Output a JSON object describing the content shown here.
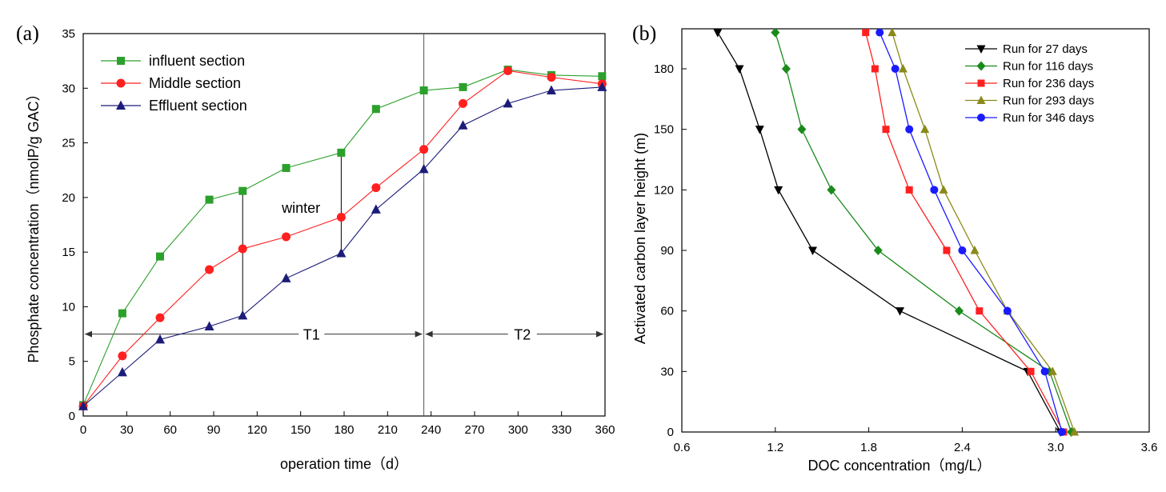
{
  "chart_data": [
    {
      "panel": "(a)",
      "type": "line",
      "xlabel": "operation time（d）",
      "ylabel": "Phosphate concentration（nmolP/g GAC）",
      "xlim": [
        0,
        360
      ],
      "ylim": [
        0,
        35
      ],
      "xticks": [
        0,
        30,
        60,
        90,
        120,
        150,
        180,
        210,
        240,
        270,
        300,
        330,
        360
      ],
      "yticks": [
        0,
        5,
        10,
        15,
        20,
        25,
        30,
        35
      ],
      "legend_position": "top-left",
      "series": [
        {
          "name": "influent section",
          "color": "#2ca02c",
          "marker": "square",
          "x": [
            0,
            27,
            53,
            87,
            110,
            140,
            178,
            202,
            235,
            262,
            293,
            323,
            358
          ],
          "y": [
            1.0,
            9.4,
            14.6,
            19.8,
            20.6,
            22.7,
            24.1,
            28.1,
            29.8,
            30.1,
            31.7,
            31.2,
            31.1
          ]
        },
        {
          "name": "Middle section",
          "color": "#ff2020",
          "marker": "circle",
          "x": [
            0,
            27,
            53,
            87,
            110,
            140,
            178,
            202,
            235,
            262,
            293,
            323,
            358
          ],
          "y": [
            0.9,
            5.5,
            9.0,
            13.4,
            15.3,
            16.4,
            18.2,
            20.9,
            24.4,
            28.6,
            31.6,
            31.0,
            30.4
          ]
        },
        {
          "name": "Effluent section",
          "color": "#1c1c78",
          "marker": "triangle-up",
          "x": [
            0,
            27,
            53,
            87,
            110,
            140,
            178,
            202,
            235,
            262,
            293,
            323,
            358
          ],
          "y": [
            0.9,
            4.0,
            7.0,
            8.2,
            9.2,
            12.6,
            14.9,
            18.9,
            22.6,
            26.6,
            28.6,
            29.8,
            30.1
          ]
        }
      ],
      "annotations": {
        "winter": "winter",
        "period1": "T1",
        "period2": "T2",
        "divider_x": 235,
        "period_arrow_y": 7.5,
        "winter_lines": [
          {
            "x": 110,
            "y_from": 9.2,
            "y_to": 20.6
          },
          {
            "x": 178,
            "y_from": 14.9,
            "y_to": 24.1
          }
        ]
      }
    },
    {
      "panel": "(b)",
      "type": "line",
      "xlabel": "DOC concentration（mg/L）",
      "ylabel": "Activated carbon layer height (m)",
      "xlim": [
        0.6,
        3.6
      ],
      "ylim": [
        0,
        198
      ],
      "xticks": [
        0.6,
        1.2,
        1.8,
        2.4,
        3.0,
        3.6
      ],
      "xtick_labels": [
        "0.6",
        "1.2",
        "1.8",
        "2.4",
        "3.0",
        "3.6"
      ],
      "yticks": [
        0,
        30,
        60,
        90,
        120,
        150,
        180
      ],
      "legend_position": "top-right",
      "series": [
        {
          "name": "Run for 27 days",
          "color": "#000000",
          "marker": "triangle-down",
          "x": [
            3.03,
            2.82,
            2.0,
            1.44,
            1.22,
            1.1,
            0.97,
            0.83
          ],
          "y": [
            0,
            30,
            60,
            90,
            120,
            150,
            180,
            198
          ]
        },
        {
          "name": "Run for 116 days",
          "color": "#1a8a1a",
          "marker": "diamond",
          "x": [
            3.1,
            2.96,
            2.38,
            1.86,
            1.56,
            1.37,
            1.27,
            1.2
          ],
          "y": [
            0,
            30,
            60,
            90,
            120,
            150,
            180,
            198
          ]
        },
        {
          "name": "Run for 236 days",
          "color": "#ff2020",
          "marker": "square",
          "x": [
            3.05,
            2.84,
            2.51,
            2.3,
            2.06,
            1.91,
            1.84,
            1.78
          ],
          "y": [
            0,
            30,
            60,
            90,
            120,
            150,
            180,
            198
          ]
        },
        {
          "name": "Run for 293 days",
          "color": "#8a8a1a",
          "marker": "triangle-up",
          "x": [
            3.12,
            2.98,
            2.69,
            2.48,
            2.28,
            2.16,
            2.02,
            1.95
          ],
          "y": [
            0,
            30,
            60,
            90,
            120,
            150,
            180,
            198
          ]
        },
        {
          "name": "Run for 346 days",
          "color": "#1a1aff",
          "marker": "circle",
          "x": [
            3.04,
            2.93,
            2.69,
            2.4,
            2.22,
            2.06,
            1.97,
            1.87
          ],
          "y": [
            0,
            30,
            60,
            90,
            120,
            150,
            180,
            198
          ]
        }
      ]
    }
  ]
}
